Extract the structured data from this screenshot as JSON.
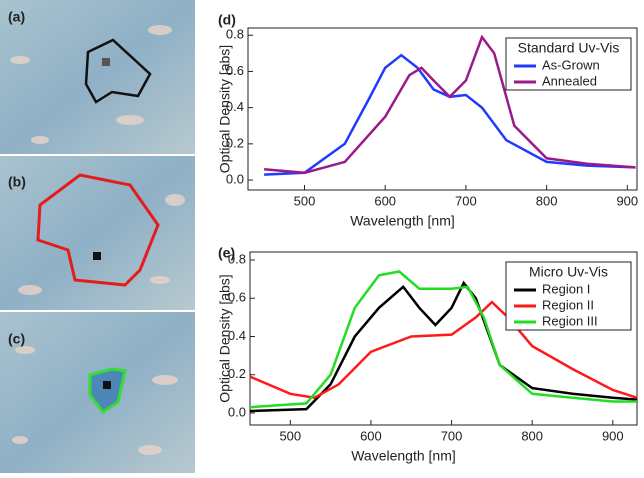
{
  "panels": {
    "labels": [
      "(a)",
      "(b)",
      "(c)"
    ]
  },
  "chart_data": [
    {
      "type": "line",
      "panel_label": "(d)",
      "x_label": "Wavelength [nm]",
      "y_label": "Optical Density [abs]",
      "legend_title": "Standard Uv-Vis",
      "legend": "upper right",
      "xlim": [
        430,
        912
      ],
      "xticks": [
        500,
        600,
        700,
        800,
        900
      ],
      "ylim": [
        -0.055,
        0.84
      ],
      "yticks": [
        {
          "value": 0,
          "label": "0.0"
        },
        0.2,
        0.4,
        0.6,
        0.8
      ],
      "series": [
        {
          "name": "As-Grown",
          "color": "#1f3bff",
          "x": [
            450,
            500,
            550,
            580,
            600,
            620,
            640,
            660,
            680,
            700,
            720,
            750,
            800,
            850,
            910
          ],
          "values": [
            0.03,
            0.04,
            0.2,
            0.45,
            0.62,
            0.69,
            0.62,
            0.5,
            0.46,
            0.47,
            0.4,
            0.22,
            0.1,
            0.08,
            0.07
          ]
        },
        {
          "name": "Annealed",
          "color": "#9b1a8a",
          "x": [
            450,
            500,
            550,
            600,
            630,
            645,
            660,
            680,
            700,
            720,
            735,
            760,
            800,
            850,
            910
          ],
          "values": [
            0.06,
            0.04,
            0.1,
            0.35,
            0.58,
            0.62,
            0.55,
            0.46,
            0.55,
            0.79,
            0.7,
            0.3,
            0.12,
            0.09,
            0.07
          ]
        }
      ]
    },
    {
      "type": "line",
      "panel_label": "(e)",
      "x_label": "Wavelength [nm]",
      "y_label": "Optical Density [abs]",
      "legend_title": "Micro Uv-Vis",
      "legend": "upper right",
      "xlim": [
        450,
        930
      ],
      "xticks": [
        500,
        600,
        700,
        800,
        900
      ],
      "ylim": [
        -0.063,
        0.842
      ],
      "yticks": [
        {
          "value": 0,
          "label": "0.0"
        },
        0.2,
        0.4,
        0.6,
        0.8
      ],
      "series": [
        {
          "name": "Region I",
          "color": "#000000",
          "x": [
            450,
            520,
            550,
            580,
            610,
            640,
            660,
            680,
            700,
            715,
            730,
            760,
            800,
            850,
            900,
            930
          ],
          "values": [
            0.01,
            0.02,
            0.15,
            0.4,
            0.55,
            0.66,
            0.55,
            0.46,
            0.55,
            0.68,
            0.6,
            0.25,
            0.13,
            0.1,
            0.08,
            0.07
          ]
        },
        {
          "name": "Region II",
          "color": "#ff1a1a",
          "x": [
            450,
            500,
            530,
            560,
            600,
            650,
            700,
            730,
            750,
            770,
            800,
            850,
            900,
            930
          ],
          "values": [
            0.19,
            0.1,
            0.08,
            0.15,
            0.32,
            0.4,
            0.41,
            0.5,
            0.58,
            0.5,
            0.35,
            0.23,
            0.12,
            0.08
          ]
        },
        {
          "name": "Region III",
          "color": "#22dd22",
          "x": [
            450,
            520,
            550,
            580,
            610,
            635,
            660,
            700,
            720,
            740,
            760,
            800,
            850,
            900,
            930
          ],
          "values": [
            0.03,
            0.05,
            0.2,
            0.55,
            0.72,
            0.74,
            0.65,
            0.65,
            0.66,
            0.5,
            0.25,
            0.1,
            0.08,
            0.06,
            0.06
          ]
        }
      ]
    }
  ]
}
